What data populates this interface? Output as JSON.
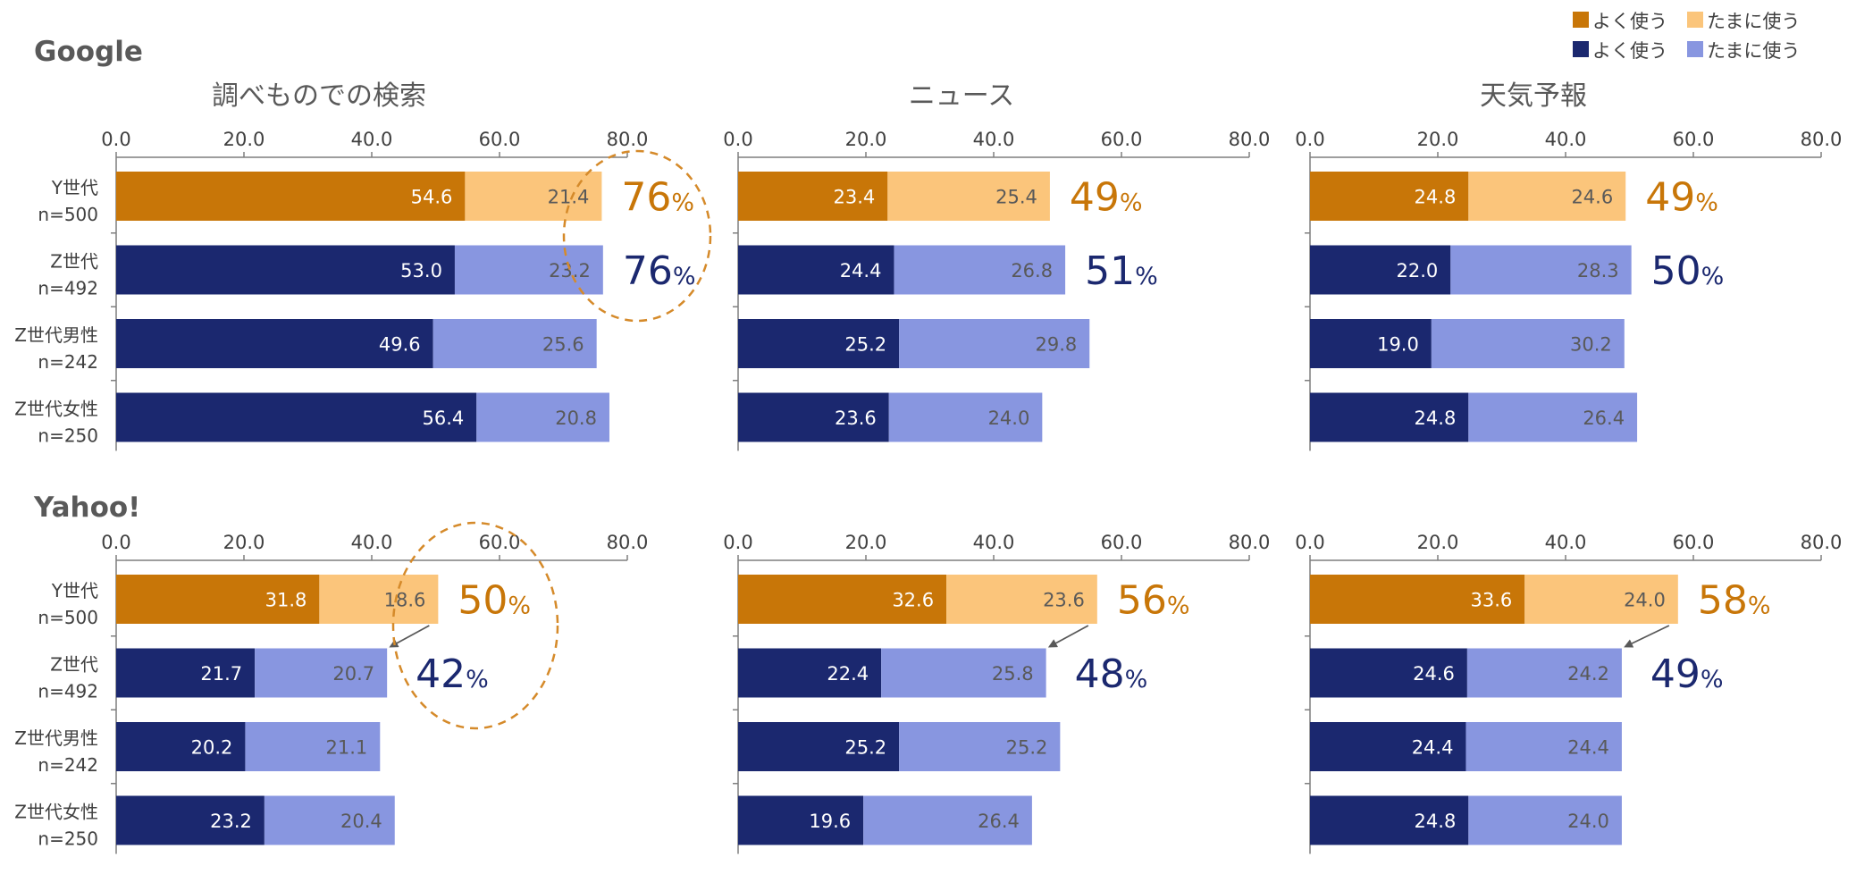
{
  "colors": {
    "y_often": "#C87608",
    "y_sometimes": "#FBC57B",
    "z_often": "#1B286F",
    "z_sometimes": "#8896E0",
    "axis": "#7f7f7f",
    "circle": "#D58A2A",
    "arrow": "#595959"
  },
  "legend": [
    {
      "label": "よく使う",
      "color": "#C87608"
    },
    {
      "label": "たまに使う",
      "color": "#FBC57B"
    },
    {
      "label": "よく使う",
      "color": "#1B286F"
    },
    {
      "label": "たまに使う",
      "color": "#8896E0"
    }
  ],
  "sections": [
    "Google",
    "Yahoo!"
  ],
  "panel_titles": [
    "調べものでの検索",
    "ニュース",
    "天気予報"
  ],
  "pct_suffix": "%",
  "chart_data": [
    {
      "type": "bar",
      "section": "Google",
      "title": "調べものでの検索",
      "categories": [
        [
          "Y世代",
          "n=500"
        ],
        [
          "Z世代",
          "n=492"
        ],
        [
          "Z世代男性",
          "n=242"
        ],
        [
          "Z世代女性",
          "n=250"
        ]
      ],
      "xlim": [
        0,
        80
      ],
      "ticks": [
        "0.0",
        "20.0",
        "40.0",
        "60.0",
        "80.0"
      ],
      "series": [
        {
          "name": "よく使う",
          "values": [
            54.6,
            53.0,
            49.6,
            56.4
          ]
        },
        {
          "name": "たまに使う",
          "values": [
            21.4,
            23.2,
            25.6,
            20.8
          ]
        }
      ],
      "totals": [
        "76",
        "76"
      ],
      "annotation": "circle"
    },
    {
      "type": "bar",
      "section": "Google",
      "title": "ニュース",
      "categories": [
        [
          "Y世代",
          "n=500"
        ],
        [
          "Z世代",
          "n=492"
        ],
        [
          "Z世代男性",
          "n=242"
        ],
        [
          "Z世代女性",
          "n=250"
        ]
      ],
      "xlim": [
        0,
        80
      ],
      "ticks": [
        "0.0",
        "20.0",
        "40.0",
        "60.0",
        "80.0"
      ],
      "series": [
        {
          "name": "よく使う",
          "values": [
            23.4,
            24.4,
            25.2,
            23.6
          ]
        },
        {
          "name": "たまに使う",
          "values": [
            25.4,
            26.8,
            29.8,
            24.0
          ]
        }
      ],
      "totals": [
        "49",
        "51"
      ],
      "annotation": "none"
    },
    {
      "type": "bar",
      "section": "Google",
      "title": "天気予報",
      "categories": [
        [
          "Y世代",
          "n=500"
        ],
        [
          "Z世代",
          "n=492"
        ],
        [
          "Z世代男性",
          "n=242"
        ],
        [
          "Z世代女性",
          "n=250"
        ]
      ],
      "xlim": [
        0,
        80
      ],
      "ticks": [
        "0.0",
        "20.0",
        "40.0",
        "60.0",
        "80.0"
      ],
      "series": [
        {
          "name": "よく使う",
          "values": [
            24.8,
            22.0,
            19.0,
            24.8
          ]
        },
        {
          "name": "たまに使う",
          "values": [
            24.6,
            28.3,
            30.2,
            26.4
          ]
        }
      ],
      "totals": [
        "49",
        "50"
      ],
      "annotation": "none"
    },
    {
      "type": "bar",
      "section": "Yahoo!",
      "title": "調べものでの検索",
      "categories": [
        [
          "Y世代",
          "n=500"
        ],
        [
          "Z世代",
          "n=492"
        ],
        [
          "Z世代男性",
          "n=242"
        ],
        [
          "Z世代女性",
          "n=250"
        ]
      ],
      "xlim": [
        0,
        80
      ],
      "ticks": [
        "0.0",
        "20.0",
        "40.0",
        "60.0",
        "80.0"
      ],
      "series": [
        {
          "name": "よく使う",
          "values": [
            31.8,
            21.7,
            20.2,
            23.2
          ]
        },
        {
          "name": "たまに使う",
          "values": [
            18.6,
            20.7,
            21.1,
            20.4
          ]
        }
      ],
      "totals": [
        "50",
        "42"
      ],
      "annotation": "circle-arrow"
    },
    {
      "type": "bar",
      "section": "Yahoo!",
      "title": "ニュース",
      "categories": [
        [
          "Y世代",
          "n=500"
        ],
        [
          "Z世代",
          "n=492"
        ],
        [
          "Z世代男性",
          "n=242"
        ],
        [
          "Z世代女性",
          "n=250"
        ]
      ],
      "xlim": [
        0,
        80
      ],
      "ticks": [
        "0.0",
        "20.0",
        "40.0",
        "60.0",
        "80.0"
      ],
      "series": [
        {
          "name": "よく使う",
          "values": [
            32.6,
            22.4,
            25.2,
            19.6
          ]
        },
        {
          "name": "たまに使う",
          "values": [
            23.6,
            25.8,
            25.2,
            26.4
          ]
        }
      ],
      "totals": [
        "56",
        "48"
      ],
      "annotation": "arrow"
    },
    {
      "type": "bar",
      "section": "Yahoo!",
      "title": "天気予報",
      "categories": [
        [
          "Y世代",
          "n=500"
        ],
        [
          "Z世代",
          "n=492"
        ],
        [
          "Z世代男性",
          "n=242"
        ],
        [
          "Z世代女性",
          "n=250"
        ]
      ],
      "xlim": [
        0,
        80
      ],
      "ticks": [
        "0.0",
        "20.0",
        "40.0",
        "60.0",
        "80.0"
      ],
      "series": [
        {
          "name": "よく使う",
          "values": [
            33.6,
            24.6,
            24.4,
            24.8
          ]
        },
        {
          "name": "たまに使う",
          "values": [
            24.0,
            24.2,
            24.4,
            24.0
          ]
        }
      ],
      "totals": [
        "58",
        "49"
      ],
      "annotation": "arrow"
    }
  ]
}
